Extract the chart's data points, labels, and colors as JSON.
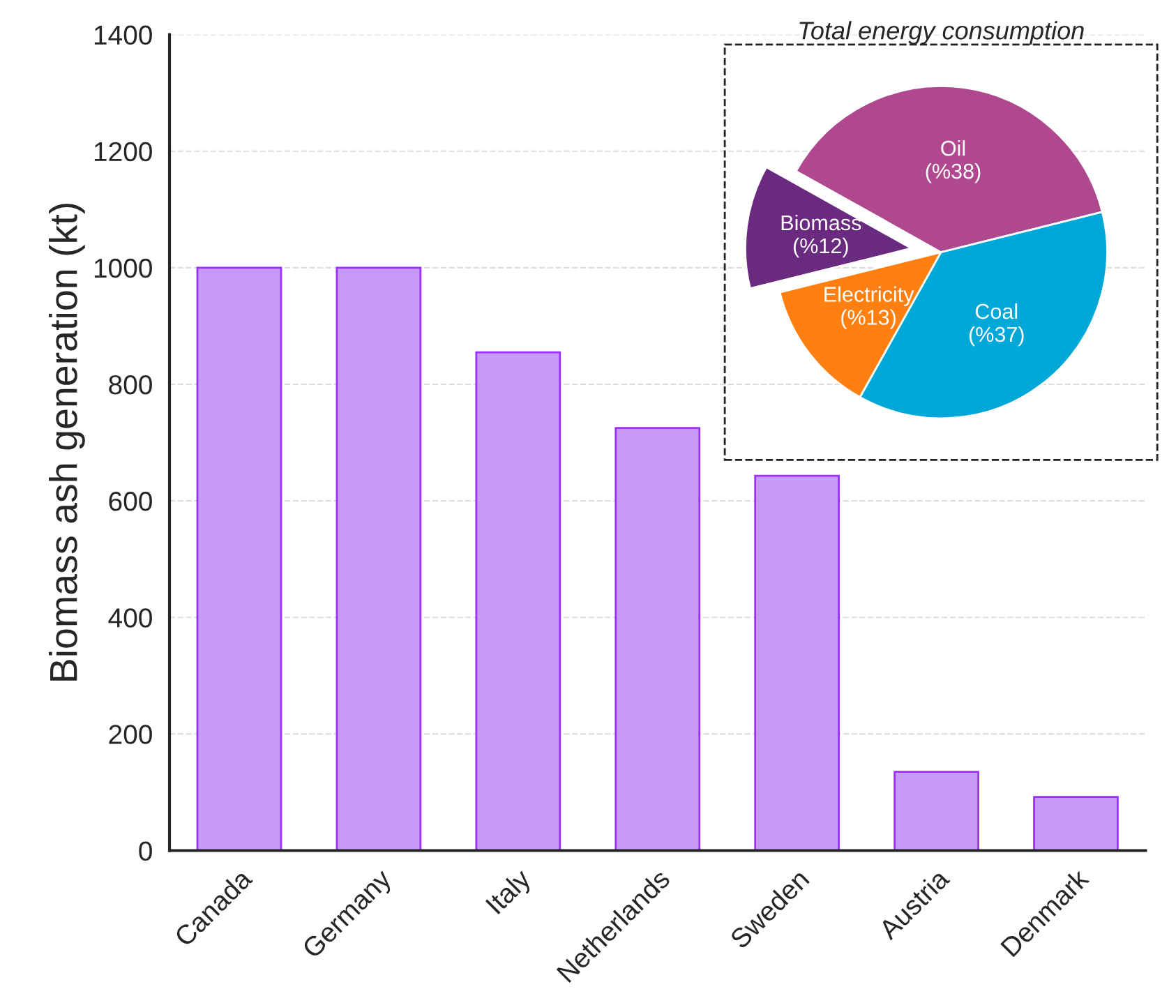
{
  "chart_data": [
    {
      "type": "bar",
      "ylabel": "Biomass ash generation (kt)",
      "categories": [
        "Canada",
        "Germany",
        "Italy",
        "Netherlands",
        "Sweden",
        "Austria",
        "Denmark"
      ],
      "values": [
        1000,
        1000,
        855,
        725,
        643,
        135,
        92
      ],
      "color": "#c79af7",
      "ylim": [
        0,
        1400
      ],
      "yticks": [
        0,
        200,
        400,
        600,
        800,
        1000,
        1200,
        1400
      ],
      "grid": "y"
    },
    {
      "type": "pie",
      "title": "Total energy consumption",
      "categories": [
        "Oil",
        "Biomass",
        "Electricity",
        "Coal"
      ],
      "values": [
        38,
        12,
        13,
        37
      ],
      "value_labels": [
        "(%38)",
        "(%12)",
        "(%13)",
        "(%37)"
      ],
      "colors": [
        "#b0488f",
        "#6a2a80",
        "#ff8010",
        "#00a8d8"
      ]
    }
  ]
}
